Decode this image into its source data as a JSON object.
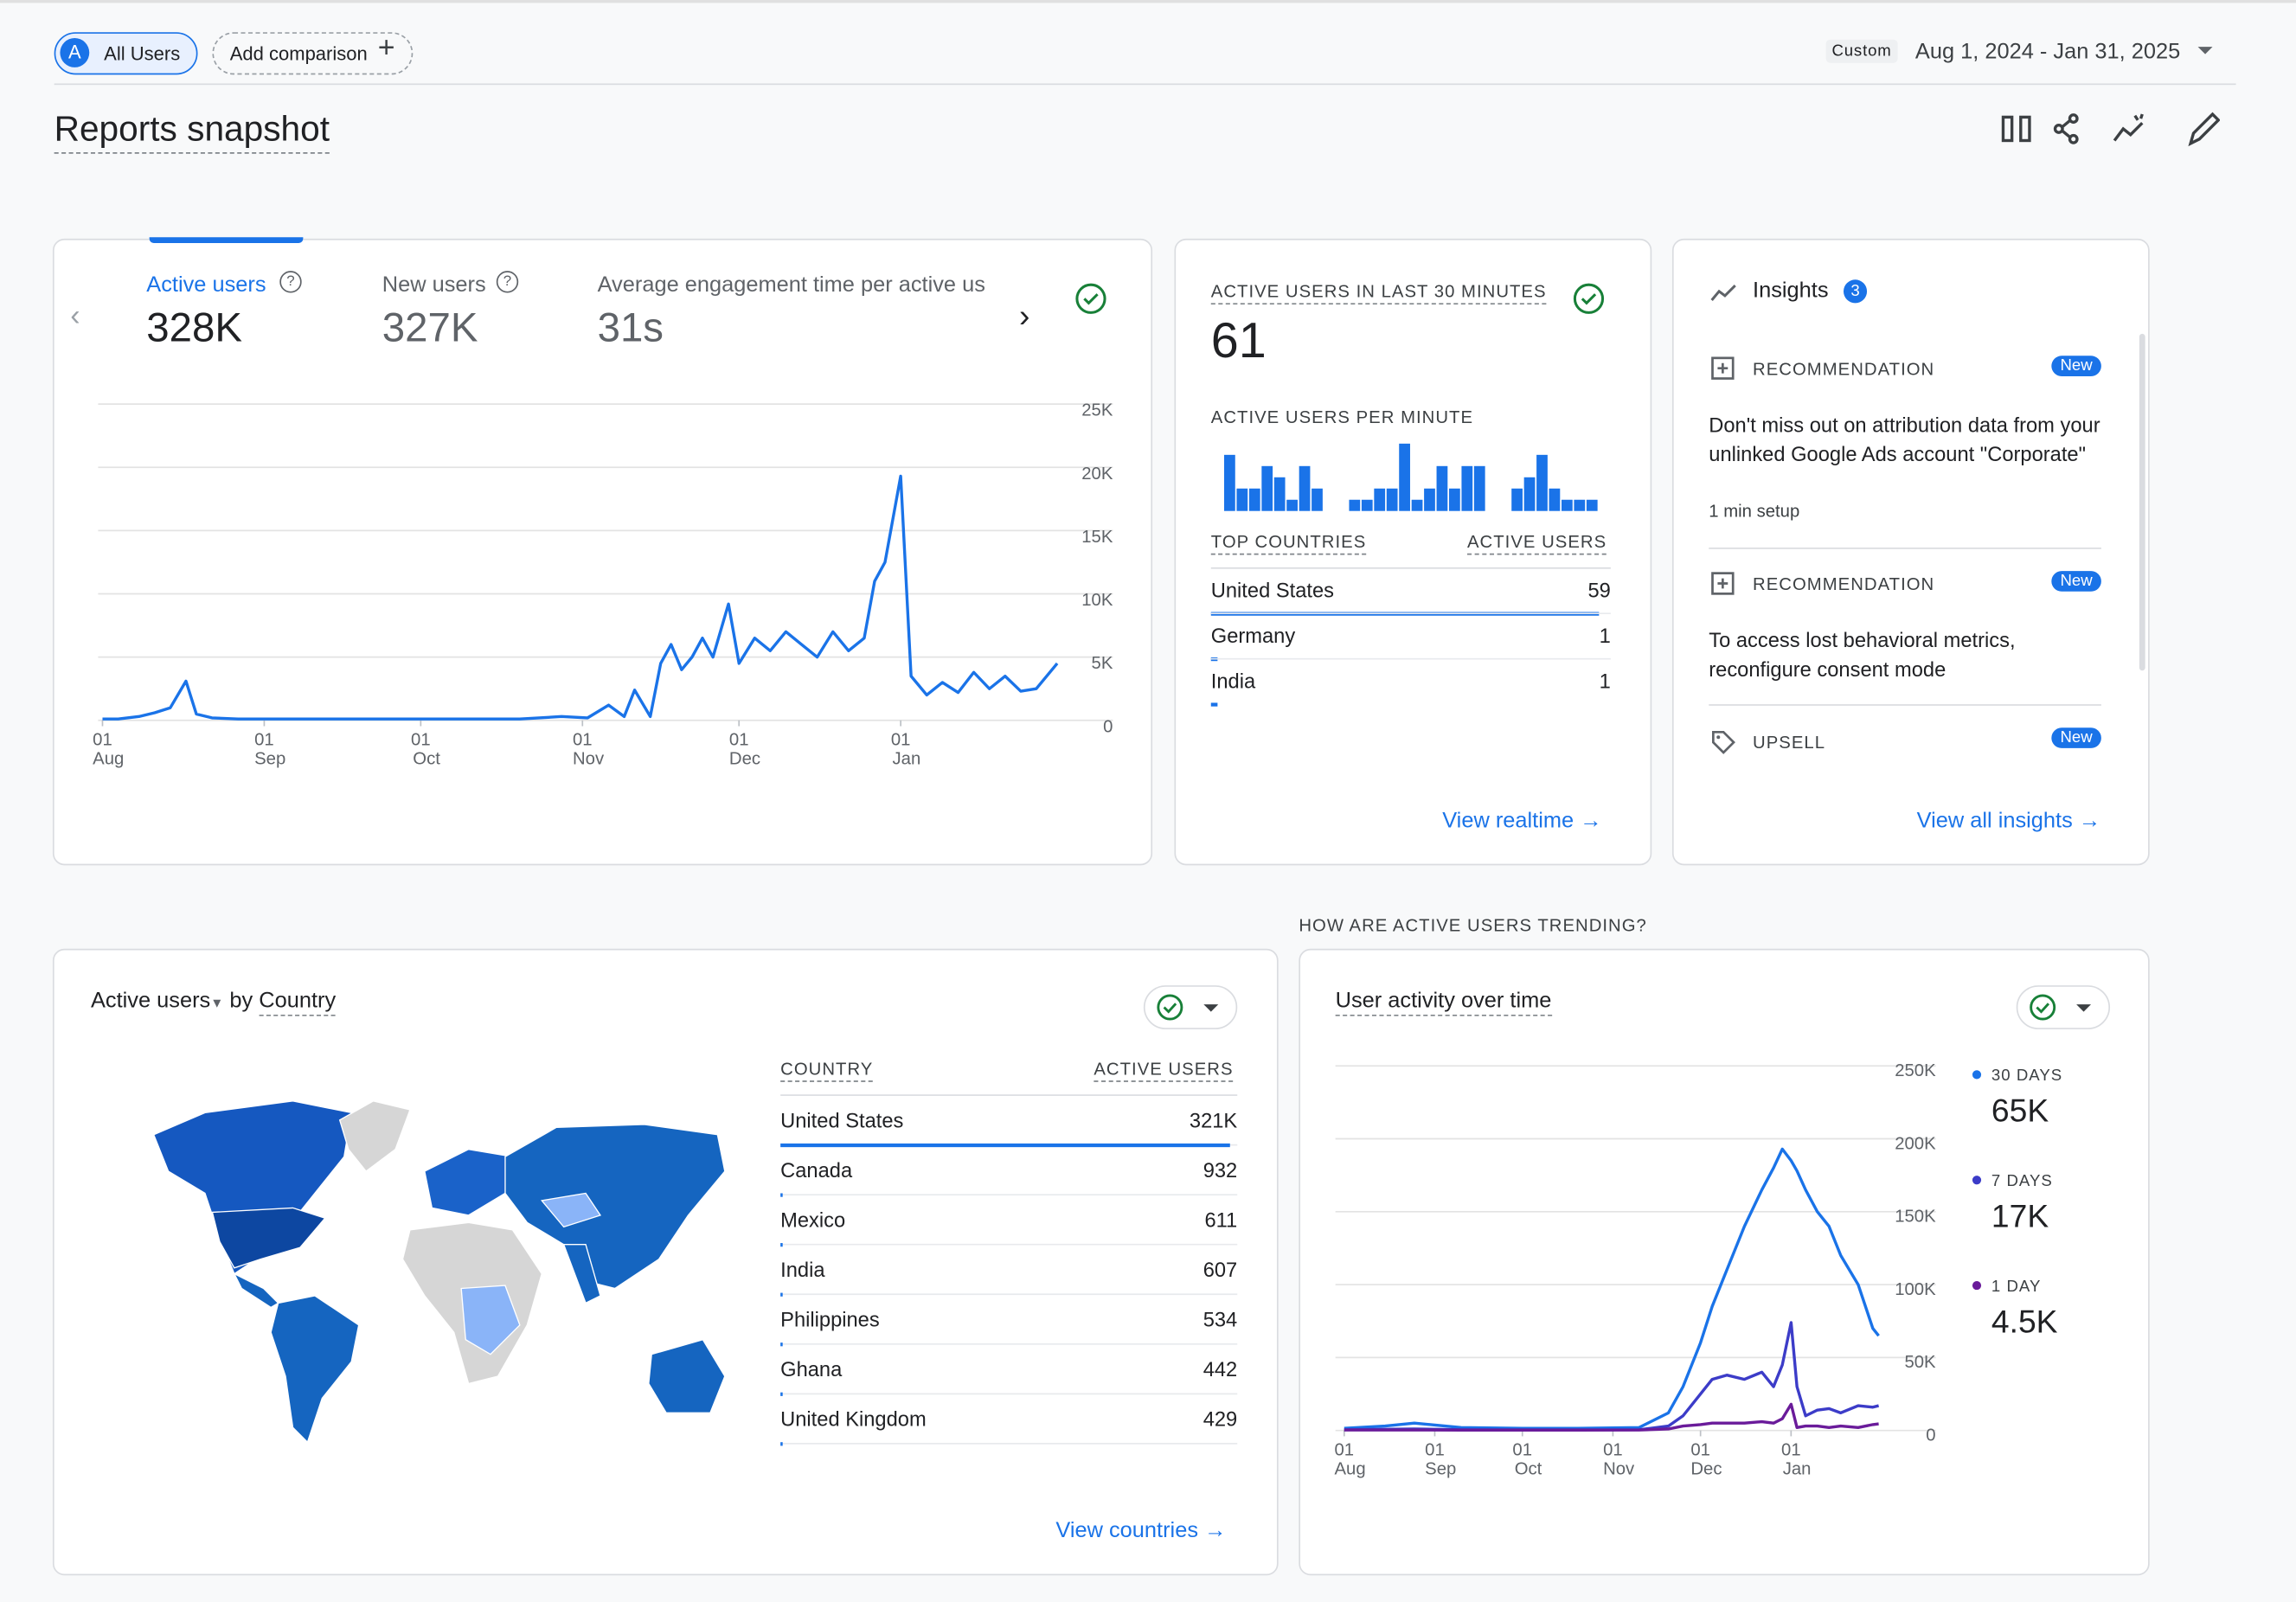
{
  "header": {
    "segment_initial": "A",
    "segment": "All Users",
    "add_comparison": "Add comparison",
    "date_type": "Custom",
    "date_range": "Aug 1, 2024 - Jan 31, 2025",
    "title": "Reports snapshot"
  },
  "overview": {
    "metrics": [
      {
        "label": "Active users",
        "value": "328K"
      },
      {
        "label": "New users",
        "value": "327K"
      },
      {
        "label": "Average engagement time per active us",
        "value": "31s"
      }
    ]
  },
  "realtime": {
    "title": "ACTIVE USERS IN LAST 30 MINUTES",
    "value": 61,
    "table": {
      "columns": [
        "TOP COUNTRIES",
        "ACTIVE USERS"
      ],
      "rows": [
        {
          "country": "United States",
          "users": 59
        },
        {
          "country": "Germany",
          "users": 1
        },
        {
          "country": "India",
          "users": 1
        }
      ]
    },
    "link": "View realtime"
  },
  "insights": {
    "title": "Insights",
    "count": 3,
    "items": [
      {
        "kind": "RECOMMENDATION",
        "badge": "New",
        "text": "Don't miss out on attribution data from your unlinked Google Ads account \"Corporate\"",
        "note": "1 min setup"
      },
      {
        "kind": "RECOMMENDATION",
        "badge": "New",
        "text": "To access lost behavioral metrics, reconfigure consent mode"
      },
      {
        "kind": "UPSELL",
        "badge": "New"
      }
    ],
    "link": "View all insights"
  },
  "countries": {
    "metric": "Active users",
    "by": "by",
    "dimension": "Country",
    "columns": [
      "COUNTRY",
      "ACTIVE USERS"
    ],
    "rows": [
      {
        "country": "United States",
        "users": 321000,
        "users_label": "321K"
      },
      {
        "country": "Canada",
        "users": 932,
        "users_label": "932"
      },
      {
        "country": "Mexico",
        "users": 611,
        "users_label": "611"
      },
      {
        "country": "India",
        "users": 607,
        "users_label": "607"
      },
      {
        "country": "Philippines",
        "users": 534,
        "users_label": "534"
      },
      {
        "country": "Ghana",
        "users": 442,
        "users_label": "442"
      },
      {
        "country": "United Kingdom",
        "users": 429,
        "users_label": "429"
      }
    ],
    "link": "View countries"
  },
  "trend": {
    "section_title": "HOW ARE ACTIVE USERS TRENDING?",
    "title": "User activity over time"
  },
  "chart_data": [
    {
      "type": "line",
      "color": "#1a73e8",
      "grid": true,
      "x": [
        "Aug 1",
        "Aug 4",
        "Aug 8",
        "Aug 11",
        "Aug 14",
        "Aug 17",
        "Aug 19",
        "Aug 22",
        "Aug 27",
        "Sep 5",
        "Sep 20",
        "Oct 5",
        "Oct 20",
        "Oct 28",
        "Nov 2",
        "Nov 6",
        "Nov 9",
        "Nov 11",
        "Nov 14",
        "Nov 16",
        "Nov 18",
        "Nov 20",
        "Nov 22",
        "Nov 24",
        "Nov 26",
        "Nov 29",
        "Dec 1",
        "Dec 4",
        "Dec 7",
        "Dec 10",
        "Dec 13",
        "Dec 16",
        "Dec 19",
        "Dec 22",
        "Dec 25",
        "Dec 27",
        "Dec 29",
        "Jan 1",
        "Jan 3",
        "Jan 6",
        "Jan 9",
        "Jan 12",
        "Jan 15",
        "Jan 18",
        "Jan 21",
        "Jan 24",
        "Jan 27",
        "Jan 31"
      ],
      "values": [
        100,
        100,
        300,
        600,
        1000,
        3100,
        500,
        200,
        100,
        100,
        100,
        100,
        100,
        300,
        200,
        1200,
        300,
        2400,
        300,
        4500,
        6000,
        4000,
        5000,
        6500,
        5000,
        9200,
        4500,
        6500,
        5500,
        7000,
        6000,
        5000,
        7000,
        5500,
        6500,
        11000,
        12500,
        19300,
        3500,
        2000,
        3000,
        2200,
        3800,
        2500,
        3500,
        2300,
        2500,
        4500
      ],
      "xlim": [
        "Aug 1",
        "Jan 31"
      ],
      "ylim": [
        0,
        25000
      ],
      "yticks": [
        0,
        {
          "value": 5000,
          "label": "5K"
        },
        {
          "value": 10000,
          "label": "10K"
        },
        {
          "value": 15000,
          "label": "15K"
        },
        {
          "value": 20000,
          "label": "20K"
        },
        {
          "value": 25000,
          "label": "25K"
        }
      ],
      "xticks": [
        {
          "value": "Aug 1",
          "label": [
            "01",
            "Aug"
          ]
        },
        {
          "value": "Sep 1",
          "label": [
            "01",
            "Sep"
          ]
        },
        {
          "value": "Oct 1",
          "label": [
            "01",
            "Oct"
          ]
        },
        {
          "value": "Nov 1",
          "label": [
            "01",
            "Nov"
          ]
        },
        {
          "value": "Dec 1",
          "label": [
            "01",
            "Dec"
          ]
        },
        {
          "value": "Jan 1",
          "label": [
            "01",
            "Jan"
          ]
        }
      ]
    },
    {
      "type": "bar",
      "title": "ACTIVE USERS PER MINUTE",
      "color": "#1a73e8",
      "values": [
        5,
        2,
        2,
        4,
        3,
        1,
        4,
        2,
        0,
        0,
        1,
        1,
        2,
        2,
        6,
        1,
        2,
        4,
        2,
        4,
        4,
        0,
        0,
        2,
        3,
        5,
        2,
        1,
        1,
        1
      ]
    },
    {
      "type": "line",
      "grid": true,
      "x": [
        "Aug 1",
        "Aug 15",
        "Aug 25",
        "Sep 10",
        "Oct 1",
        "Oct 20",
        "Nov 10",
        "Nov 20",
        "Nov 25",
        "Dec 1",
        "Dec 5",
        "Dec 10",
        "Dec 16",
        "Dec 22",
        "Dec 26",
        "Dec 29",
        "Jan 1",
        "Jan 3",
        "Jan 6",
        "Jan 10",
        "Jan 14",
        "Jan 18",
        "Jan 24",
        "Jan 29",
        "Jan 31"
      ],
      "series": [
        {
          "name": "30 DAYS",
          "summary": "65K",
          "color": "#1a73e8",
          "values": [
            1500,
            3000,
            5000,
            2000,
            1500,
            1500,
            2000,
            12000,
            30000,
            60000,
            85000,
            110000,
            140000,
            165000,
            180000,
            193000,
            185000,
            178000,
            165000,
            150000,
            140000,
            120000,
            100000,
            70000,
            65000
          ]
        },
        {
          "name": "7 DAYS",
          "summary": "17K",
          "color": "#3c3cc8",
          "values": [
            500,
            800,
            1000,
            500,
            400,
            400,
            500,
            3000,
            10000,
            25000,
            35000,
            38000,
            35000,
            40000,
            30000,
            45000,
            74000,
            30000,
            10000,
            14000,
            15000,
            12000,
            17000,
            16000,
            17000
          ]
        },
        {
          "name": "1 DAY",
          "summary": "4.5K",
          "color": "#6a1b9a",
          "values": [
            300,
            300,
            300,
            200,
            200,
            200,
            300,
            1000,
            3000,
            4000,
            5000,
            5000,
            5000,
            6000,
            5000,
            8000,
            18000,
            2000,
            3000,
            3000,
            2000,
            3000,
            2000,
            4000,
            4500
          ]
        }
      ],
      "xlim": [
        "Aug 1",
        "Jan 31"
      ],
      "ylim": [
        0,
        250000
      ],
      "yticks": [
        0,
        {
          "value": 50000,
          "label": "50K"
        },
        {
          "value": 100000,
          "label": "100K"
        },
        {
          "value": 150000,
          "label": "150K"
        },
        {
          "value": 200000,
          "label": "200K"
        },
        {
          "value": 250000,
          "label": "250K"
        }
      ],
      "xticks": [
        {
          "value": "Aug 1",
          "label": [
            "01",
            "Aug"
          ]
        },
        {
          "value": "Sep 1",
          "label": [
            "01",
            "Sep"
          ]
        },
        {
          "value": "Oct 1",
          "label": [
            "01",
            "Oct"
          ]
        },
        {
          "value": "Nov 1",
          "label": [
            "01",
            "Nov"
          ]
        },
        {
          "value": "Dec 1",
          "label": [
            "01",
            "Dec"
          ]
        },
        {
          "value": "Jan 1",
          "label": [
            "01",
            "Jan"
          ]
        }
      ]
    }
  ]
}
